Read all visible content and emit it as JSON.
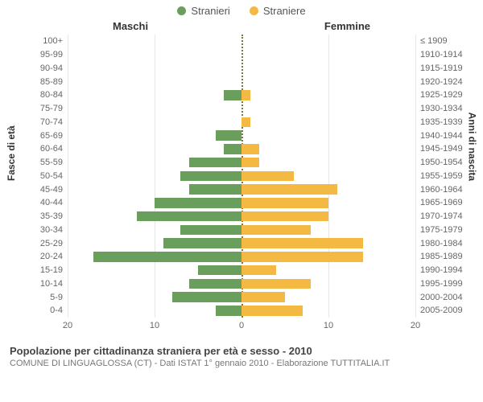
{
  "legend": {
    "male": {
      "label": "Stranieri",
      "color": "#6a9e5c"
    },
    "female": {
      "label": "Straniere",
      "color": "#f4b942"
    }
  },
  "columns": {
    "left": "Maschi",
    "right": "Femmine"
  },
  "y_left_axis": "Fasce di età",
  "y_right_axis": "Anni di nascita",
  "caption_title": "Popolazione per cittadinanza straniera per età e sesso - 2010",
  "caption_sub": "COMUNE DI LINGUAGLOSSA (CT) - Dati ISTAT 1° gennaio 2010 - Elaborazione TUTTITALIA.IT",
  "chart": {
    "type": "population-pyramid",
    "xmax": 20,
    "xticks": [
      20,
      10,
      0,
      10,
      20
    ],
    "grid_color": "#e6e6e6",
    "center_line_color": "#7a7a3a",
    "background_color": "#ffffff",
    "label_fontsize": 11,
    "title_fontsize": 13,
    "rows": [
      {
        "age": "0-4",
        "birth": "2005-2009",
        "m": 3,
        "f": 7
      },
      {
        "age": "5-9",
        "birth": "2000-2004",
        "m": 8,
        "f": 5
      },
      {
        "age": "10-14",
        "birth": "1995-1999",
        "m": 6,
        "f": 8
      },
      {
        "age": "15-19",
        "birth": "1990-1994",
        "m": 5,
        "f": 4
      },
      {
        "age": "20-24",
        "birth": "1985-1989",
        "m": 17,
        "f": 14
      },
      {
        "age": "25-29",
        "birth": "1980-1984",
        "m": 9,
        "f": 14
      },
      {
        "age": "30-34",
        "birth": "1975-1979",
        "m": 7,
        "f": 8
      },
      {
        "age": "35-39",
        "birth": "1970-1974",
        "m": 12,
        "f": 10
      },
      {
        "age": "40-44",
        "birth": "1965-1969",
        "m": 10,
        "f": 10
      },
      {
        "age": "45-49",
        "birth": "1960-1964",
        "m": 6,
        "f": 11
      },
      {
        "age": "50-54",
        "birth": "1955-1959",
        "m": 7,
        "f": 6
      },
      {
        "age": "55-59",
        "birth": "1950-1954",
        "m": 6,
        "f": 2
      },
      {
        "age": "60-64",
        "birth": "1945-1949",
        "m": 2,
        "f": 2
      },
      {
        "age": "65-69",
        "birth": "1940-1944",
        "m": 3,
        "f": 0
      },
      {
        "age": "70-74",
        "birth": "1935-1939",
        "m": 0,
        "f": 1
      },
      {
        "age": "75-79",
        "birth": "1930-1934",
        "m": 0,
        "f": 0
      },
      {
        "age": "80-84",
        "birth": "1925-1929",
        "m": 2,
        "f": 1
      },
      {
        "age": "85-89",
        "birth": "1920-1924",
        "m": 0,
        "f": 0
      },
      {
        "age": "90-94",
        "birth": "1915-1919",
        "m": 0,
        "f": 0
      },
      {
        "age": "95-99",
        "birth": "1910-1914",
        "m": 0,
        "f": 0
      },
      {
        "age": "100+",
        "birth": "≤ 1909",
        "m": 0,
        "f": 0
      }
    ]
  }
}
